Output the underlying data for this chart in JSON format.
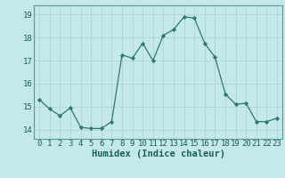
{
  "x": [
    0,
    1,
    2,
    3,
    4,
    5,
    6,
    7,
    8,
    9,
    10,
    11,
    12,
    13,
    14,
    15,
    16,
    17,
    18,
    19,
    20,
    21,
    22,
    23
  ],
  "y": [
    15.3,
    14.9,
    14.6,
    14.95,
    14.1,
    14.05,
    14.05,
    14.35,
    17.25,
    17.1,
    17.75,
    17.0,
    18.1,
    18.35,
    18.9,
    18.85,
    17.75,
    17.15,
    15.55,
    15.1,
    15.15,
    14.35,
    14.35,
    14.5
  ],
  "line_color": "#2d7b6e",
  "marker": "D",
  "marker_size": 2.2,
  "bg_color": "#c5e8e8",
  "grid_color": "#b0d4d4",
  "xlabel": "Humidex (Indice chaleur)",
  "xlabel_fontsize": 7.5,
  "tick_fontsize": 6.5,
  "ylim": [
    13.6,
    19.4
  ],
  "xlim": [
    -0.5,
    23.5
  ],
  "yticks": [
    14,
    15,
    16,
    17,
    18,
    19
  ],
  "xticks": [
    0,
    1,
    2,
    3,
    4,
    5,
    6,
    7,
    8,
    9,
    10,
    11,
    12,
    13,
    14,
    15,
    16,
    17,
    18,
    19,
    20,
    21,
    22,
    23
  ]
}
